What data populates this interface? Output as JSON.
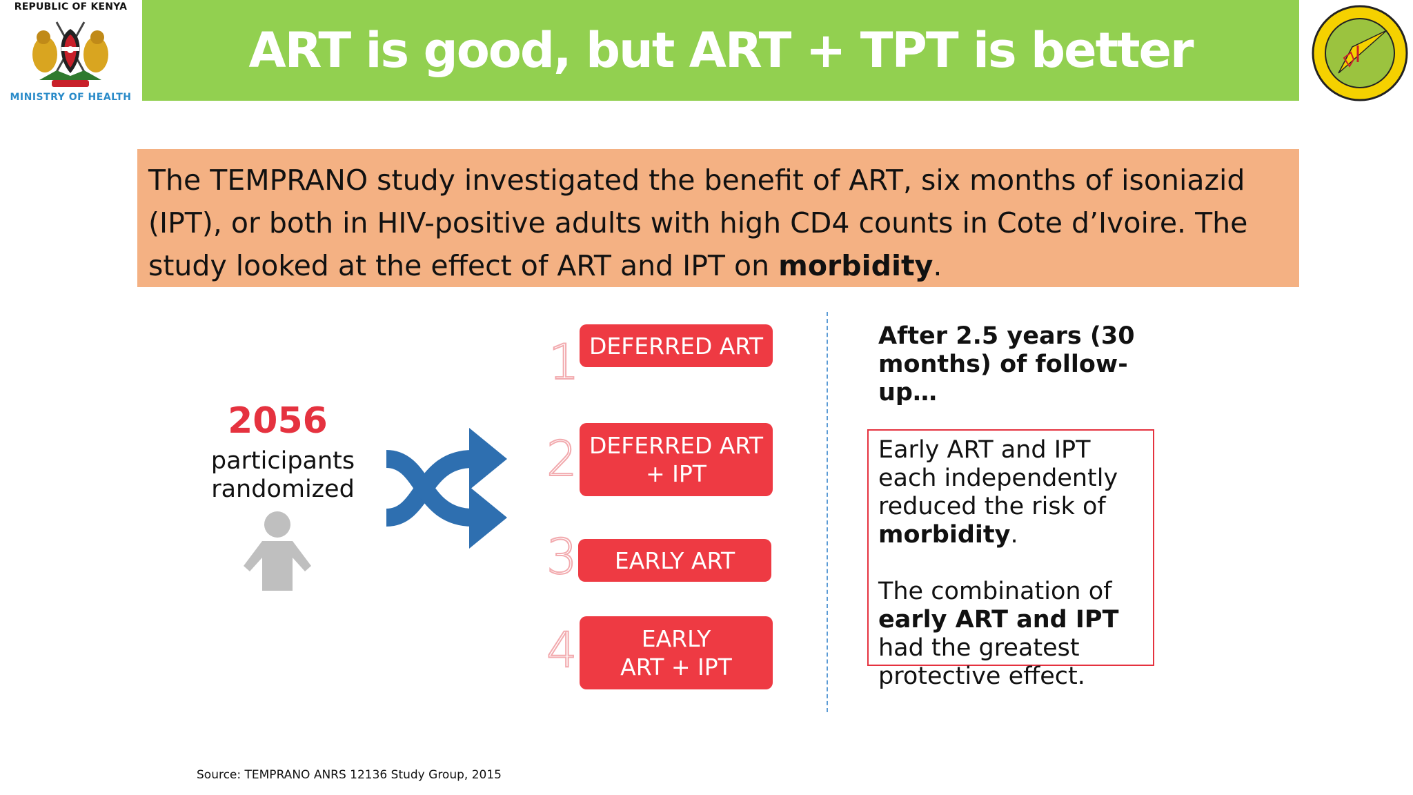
{
  "header": {
    "logo_left_top": "REPUBLIC OF KENYA",
    "logo_left_bottom": "MINISTRY OF HEALTH",
    "title": "ART is good, but ART + TPT is better"
  },
  "intro": {
    "text_part1": "The TEMPRANO study investigated the benefit of ART, six months of isoniazid (IPT), or both in HIV-positive adults with high CD4 counts in Cote d’Ivoire. The study looked at the effect of ART and IPT on ",
    "text_bold": "morbidity",
    "text_part2": "."
  },
  "participants": {
    "count": "2056",
    "label_line1": "participants",
    "label_line2": "randomized"
  },
  "arms": [
    {
      "number": "1",
      "line1": "DEFERRED ART",
      "line2": ""
    },
    {
      "number": "2",
      "line1": "DEFERRED ART",
      "line2": "+ IPT"
    },
    {
      "number": "3",
      "line1": "EARLY ART",
      "line2": ""
    },
    {
      "number": "4",
      "line1": "EARLY",
      "line2": "ART + IPT"
    }
  ],
  "results": {
    "followup": "After 2.5 years (30 months) of follow-up…",
    "p1_part1": "Early ART and IPT each independently reduced the risk of ",
    "p1_bold": "morbidity",
    "p1_part2": ".",
    "p2_part1": "The combination of ",
    "p2_bold": "early ART and IPT",
    "p2_part2": " had the greatest protective effect."
  },
  "source": "Source: TEMPRANO ANRS 12136 Study Group, 2015",
  "colors": {
    "title_bar": "#92d050",
    "intro_bg": "#f4b183",
    "arm_red": "#ee3a43",
    "count_red": "#e5323f",
    "divider_blue": "#5b9bd5",
    "shuffle_blue": "#2e6fb0",
    "person_gray": "#bfbfbf"
  },
  "icons": [
    "kenya-coat-of-arms-icon",
    "ntlp-logo-icon",
    "person-icon",
    "shuffle-arrows-icon"
  ]
}
